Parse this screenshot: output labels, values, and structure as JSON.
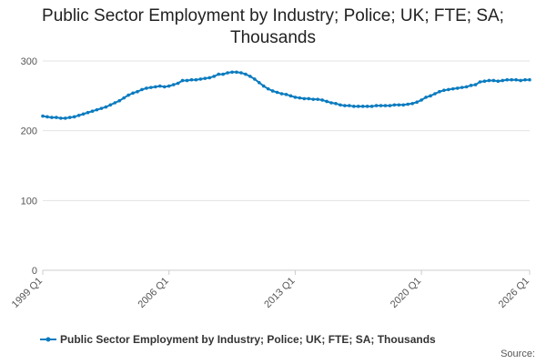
{
  "chart_data": {
    "type": "line",
    "title": "Public Sector Employment by Industry; Police; UK; FTE; SA; Thousands",
    "categories": [
      "1999 Q1",
      null,
      null,
      null,
      null,
      null,
      null,
      null,
      null,
      null,
      null,
      null,
      null,
      null,
      null,
      null,
      null,
      null,
      null,
      null,
      null,
      null,
      null,
      null,
      null,
      null,
      null,
      null,
      "2006 Q1",
      null,
      null,
      null,
      null,
      null,
      null,
      null,
      null,
      null,
      null,
      null,
      null,
      null,
      null,
      null,
      null,
      null,
      null,
      null,
      null,
      null,
      null,
      null,
      null,
      null,
      null,
      null,
      "2013 Q1",
      null,
      null,
      null,
      null,
      null,
      null,
      null,
      null,
      null,
      null,
      null,
      null,
      null,
      null,
      null,
      null,
      null,
      null,
      null,
      null,
      null,
      null,
      null,
      null,
      null,
      null,
      null,
      "2020 Q1",
      null,
      null,
      null,
      null,
      null,
      null,
      null,
      null,
      null,
      null,
      null,
      null,
      null,
      null,
      null,
      null,
      null,
      null,
      null,
      null,
      null,
      null,
      null,
      "2026 Q1"
    ],
    "series": [
      {
        "name": "Public Sector Employment by Industry; Police; UK; FTE; SA; Thousands",
        "color": "#0a7bbf",
        "values": [
          221,
          220,
          219,
          219,
          218,
          218,
          219,
          220,
          222,
          224,
          226,
          228,
          230,
          232,
          234,
          237,
          240,
          243,
          247,
          251,
          254,
          256,
          259,
          261,
          262,
          263,
          264,
          263,
          264,
          266,
          268,
          272,
          272,
          273,
          273,
          274,
          275,
          276,
          278,
          281,
          281,
          283,
          284,
          284,
          283,
          281,
          278,
          274,
          269,
          264,
          260,
          257,
          255,
          253,
          252,
          250,
          248,
          247,
          246,
          246,
          245,
          245,
          244,
          242,
          240,
          239,
          237,
          236,
          236,
          235,
          235,
          235,
          235,
          235,
          236,
          236,
          236,
          236,
          237,
          237,
          237,
          238,
          239,
          241,
          244,
          248,
          250,
          253,
          256,
          258,
          259,
          260,
          261,
          262,
          263,
          265,
          266,
          270,
          271,
          272,
          272,
          271,
          272,
          273,
          273,
          273,
          272,
          273,
          273
        ]
      }
    ],
    "ylim": [
      0,
      300
    ],
    "yticks": [
      0,
      100,
      200,
      300
    ],
    "grid": true,
    "source": "Source:"
  }
}
